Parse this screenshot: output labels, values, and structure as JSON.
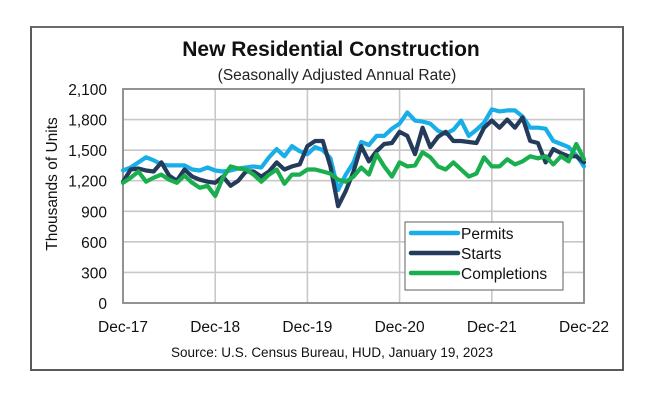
{
  "chart_data": {
    "type": "line",
    "title": "New Residential Construction",
    "subtitle": "(Seasonally Adjusted Annual Rate)",
    "xlabel": "",
    "ylabel": "Thousands of Units",
    "source": "Source:  U.S. Census Bureau, HUD, January 19, 2023",
    "ylim": [
      0,
      2100
    ],
    "yticks": [
      0,
      300,
      600,
      900,
      1200,
      1500,
      1800,
      2100
    ],
    "ytick_labels": [
      "0",
      "300",
      "600",
      "900",
      "1,200",
      "1,500",
      "1,800",
      "2,100"
    ],
    "xtick_labels": [
      "Dec-17",
      "Dec-18",
      "Dec-19",
      "Dec-20",
      "Dec-21",
      "Dec-22"
    ],
    "x_period": "monthly, Dec-17 to Dec-22",
    "grid": true,
    "legend": "lower-right",
    "series": [
      {
        "name": "Permits",
        "color": "#1aaee8",
        "values": [
          1300,
          1330,
          1380,
          1430,
          1400,
          1360,
          1350,
          1350,
          1350,
          1310,
          1300,
          1330,
          1300,
          1290,
          1300,
          1320,
          1330,
          1340,
          1330,
          1430,
          1510,
          1440,
          1540,
          1490,
          1460,
          1530,
          1500,
          1420,
          1110,
          1260,
          1380,
          1580,
          1550,
          1640,
          1640,
          1710,
          1760,
          1870,
          1790,
          1780,
          1760,
          1690,
          1660,
          1700,
          1790,
          1640,
          1700,
          1770,
          1900,
          1880,
          1890,
          1890,
          1830,
          1720,
          1720,
          1710,
          1590,
          1560,
          1530,
          1450,
          1340
        ]
      },
      {
        "name": "Starts",
        "color": "#243b5c",
        "values": [
          1190,
          1310,
          1320,
          1300,
          1290,
          1380,
          1250,
          1200,
          1310,
          1240,
          1210,
          1190,
          1180,
          1240,
          1150,
          1200,
          1290,
          1290,
          1240,
          1290,
          1380,
          1310,
          1340,
          1360,
          1540,
          1590,
          1590,
          1340,
          950,
          1100,
          1290,
          1540,
          1390,
          1490,
          1560,
          1570,
          1680,
          1640,
          1460,
          1720,
          1530,
          1630,
          1680,
          1590,
          1590,
          1580,
          1570,
          1720,
          1790,
          1720,
          1800,
          1720,
          1820,
          1590,
          1570,
          1380,
          1510,
          1470,
          1440,
          1440,
          1380
        ]
      },
      {
        "name": "Completions",
        "color": "#1aae4e",
        "values": [
          1180,
          1230,
          1290,
          1190,
          1230,
          1260,
          1210,
          1180,
          1250,
          1180,
          1130,
          1150,
          1050,
          1230,
          1340,
          1320,
          1310,
          1260,
          1190,
          1260,
          1310,
          1170,
          1260,
          1260,
          1310,
          1310,
          1290,
          1270,
          1210,
          1190,
          1240,
          1330,
          1260,
          1460,
          1340,
          1240,
          1380,
          1340,
          1350,
          1480,
          1430,
          1340,
          1310,
          1380,
          1310,
          1240,
          1270,
          1430,
          1340,
          1340,
          1410,
          1360,
          1390,
          1440,
          1420,
          1440,
          1360,
          1440,
          1390,
          1560,
          1410
        ]
      }
    ]
  }
}
